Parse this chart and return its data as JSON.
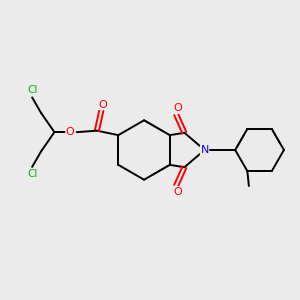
{
  "background_color": "#ebebeb",
  "bond_color": "#000000",
  "atom_colors": {
    "O": "#ff0000",
    "N": "#0000ff",
    "Cl": "#00bb00",
    "C": "#000000"
  },
  "figsize": [
    3.0,
    3.0
  ],
  "dpi": 100,
  "lw": 1.4,
  "lw_inner": 1.1
}
